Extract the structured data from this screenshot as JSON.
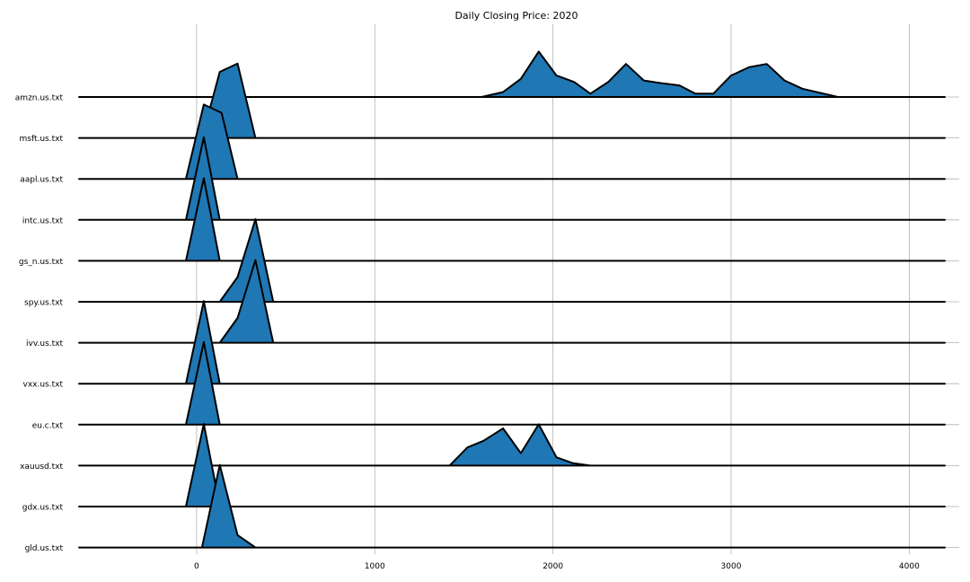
{
  "chart_data": {
    "type": "ridgeline",
    "title": "Daily Closing Price: 2020",
    "xlabel": "",
    "ylabel": "",
    "xlim": [
      -660,
      4230
    ],
    "x_ticks": [
      0,
      1000,
      2000,
      3000,
      4000
    ],
    "grid": "vertical",
    "fill_color": "#1f77b4",
    "line_color": "#000000",
    "series": [
      {
        "name": "amzn.us.txt",
        "points": [
          [
            -660,
            0
          ],
          [
            1600,
            0
          ],
          [
            1720,
            0.06
          ],
          [
            1820,
            0.22
          ],
          [
            1920,
            0.55
          ],
          [
            2020,
            0.26
          ],
          [
            2120,
            0.18
          ],
          [
            2210,
            0.04
          ],
          [
            2310,
            0.18
          ],
          [
            2410,
            0.4
          ],
          [
            2510,
            0.2
          ],
          [
            2600,
            0.17
          ],
          [
            2710,
            0.14
          ],
          [
            2800,
            0.04
          ],
          [
            2900,
            0.04
          ],
          [
            3000,
            0.26
          ],
          [
            3100,
            0.36
          ],
          [
            3200,
            0.4
          ],
          [
            3300,
            0.2
          ],
          [
            3400,
            0.1
          ],
          [
            3600,
            0
          ],
          [
            4200,
            0
          ]
        ]
      },
      {
        "name": "msft.us.txt",
        "points": [
          [
            -660,
            0
          ],
          [
            30,
            0
          ],
          [
            130,
            0.8
          ],
          [
            230,
            0.9
          ],
          [
            330,
            0
          ],
          [
            4200,
            0
          ]
        ]
      },
      {
        "name": "aapl.us.txt",
        "points": [
          [
            -660,
            0
          ],
          [
            -60,
            0
          ],
          [
            40,
            0.9
          ],
          [
            140,
            0.8
          ],
          [
            230,
            0
          ],
          [
            4200,
            0
          ]
        ]
      },
      {
        "name": "intc.us.txt",
        "points": [
          [
            -660,
            0
          ],
          [
            -60,
            0
          ],
          [
            40,
            1
          ],
          [
            130,
            0
          ],
          [
            4200,
            0
          ]
        ]
      },
      {
        "name": "gs_n.us.txt",
        "points": [
          [
            -660,
            0
          ],
          [
            -60,
            0
          ],
          [
            40,
            1
          ],
          [
            130,
            0
          ],
          [
            4200,
            0
          ]
        ]
      },
      {
        "name": "spy.us.txt",
        "points": [
          [
            -660,
            0
          ],
          [
            130,
            0
          ],
          [
            230,
            0.3
          ],
          [
            330,
            1
          ],
          [
            430,
            0
          ],
          [
            4200,
            0
          ]
        ]
      },
      {
        "name": "ivv.us.txt",
        "points": [
          [
            -660,
            0
          ],
          [
            130,
            0
          ],
          [
            230,
            0.3
          ],
          [
            330,
            1
          ],
          [
            430,
            0
          ],
          [
            4200,
            0
          ]
        ]
      },
      {
        "name": "vxx.us.txt",
        "points": [
          [
            -660,
            0
          ],
          [
            -60,
            0
          ],
          [
            40,
            1
          ],
          [
            130,
            0
          ],
          [
            4200,
            0
          ]
        ]
      },
      {
        "name": "eu.c.txt",
        "points": [
          [
            -660,
            0
          ],
          [
            -60,
            0
          ],
          [
            40,
            1
          ],
          [
            130,
            0
          ],
          [
            4200,
            0
          ]
        ]
      },
      {
        "name": "xauusd.txt",
        "points": [
          [
            -660,
            0
          ],
          [
            1420,
            0
          ],
          [
            1520,
            0.22
          ],
          [
            1610,
            0.3
          ],
          [
            1720,
            0.45
          ],
          [
            1820,
            0.15
          ],
          [
            1920,
            0.5
          ],
          [
            2020,
            0.1
          ],
          [
            2110,
            0.03
          ],
          [
            2210,
            0
          ],
          [
            4200,
            0
          ]
        ]
      },
      {
        "name": "gdx.us.txt",
        "points": [
          [
            -660,
            0
          ],
          [
            -60,
            0
          ],
          [
            40,
            1
          ],
          [
            130,
            0
          ],
          [
            4200,
            0
          ]
        ]
      },
      {
        "name": "gld.us.txt",
        "points": [
          [
            -660,
            0
          ],
          [
            30,
            0
          ],
          [
            130,
            1
          ],
          [
            230,
            0.15
          ],
          [
            330,
            0
          ],
          [
            4200,
            0
          ]
        ]
      }
    ]
  }
}
